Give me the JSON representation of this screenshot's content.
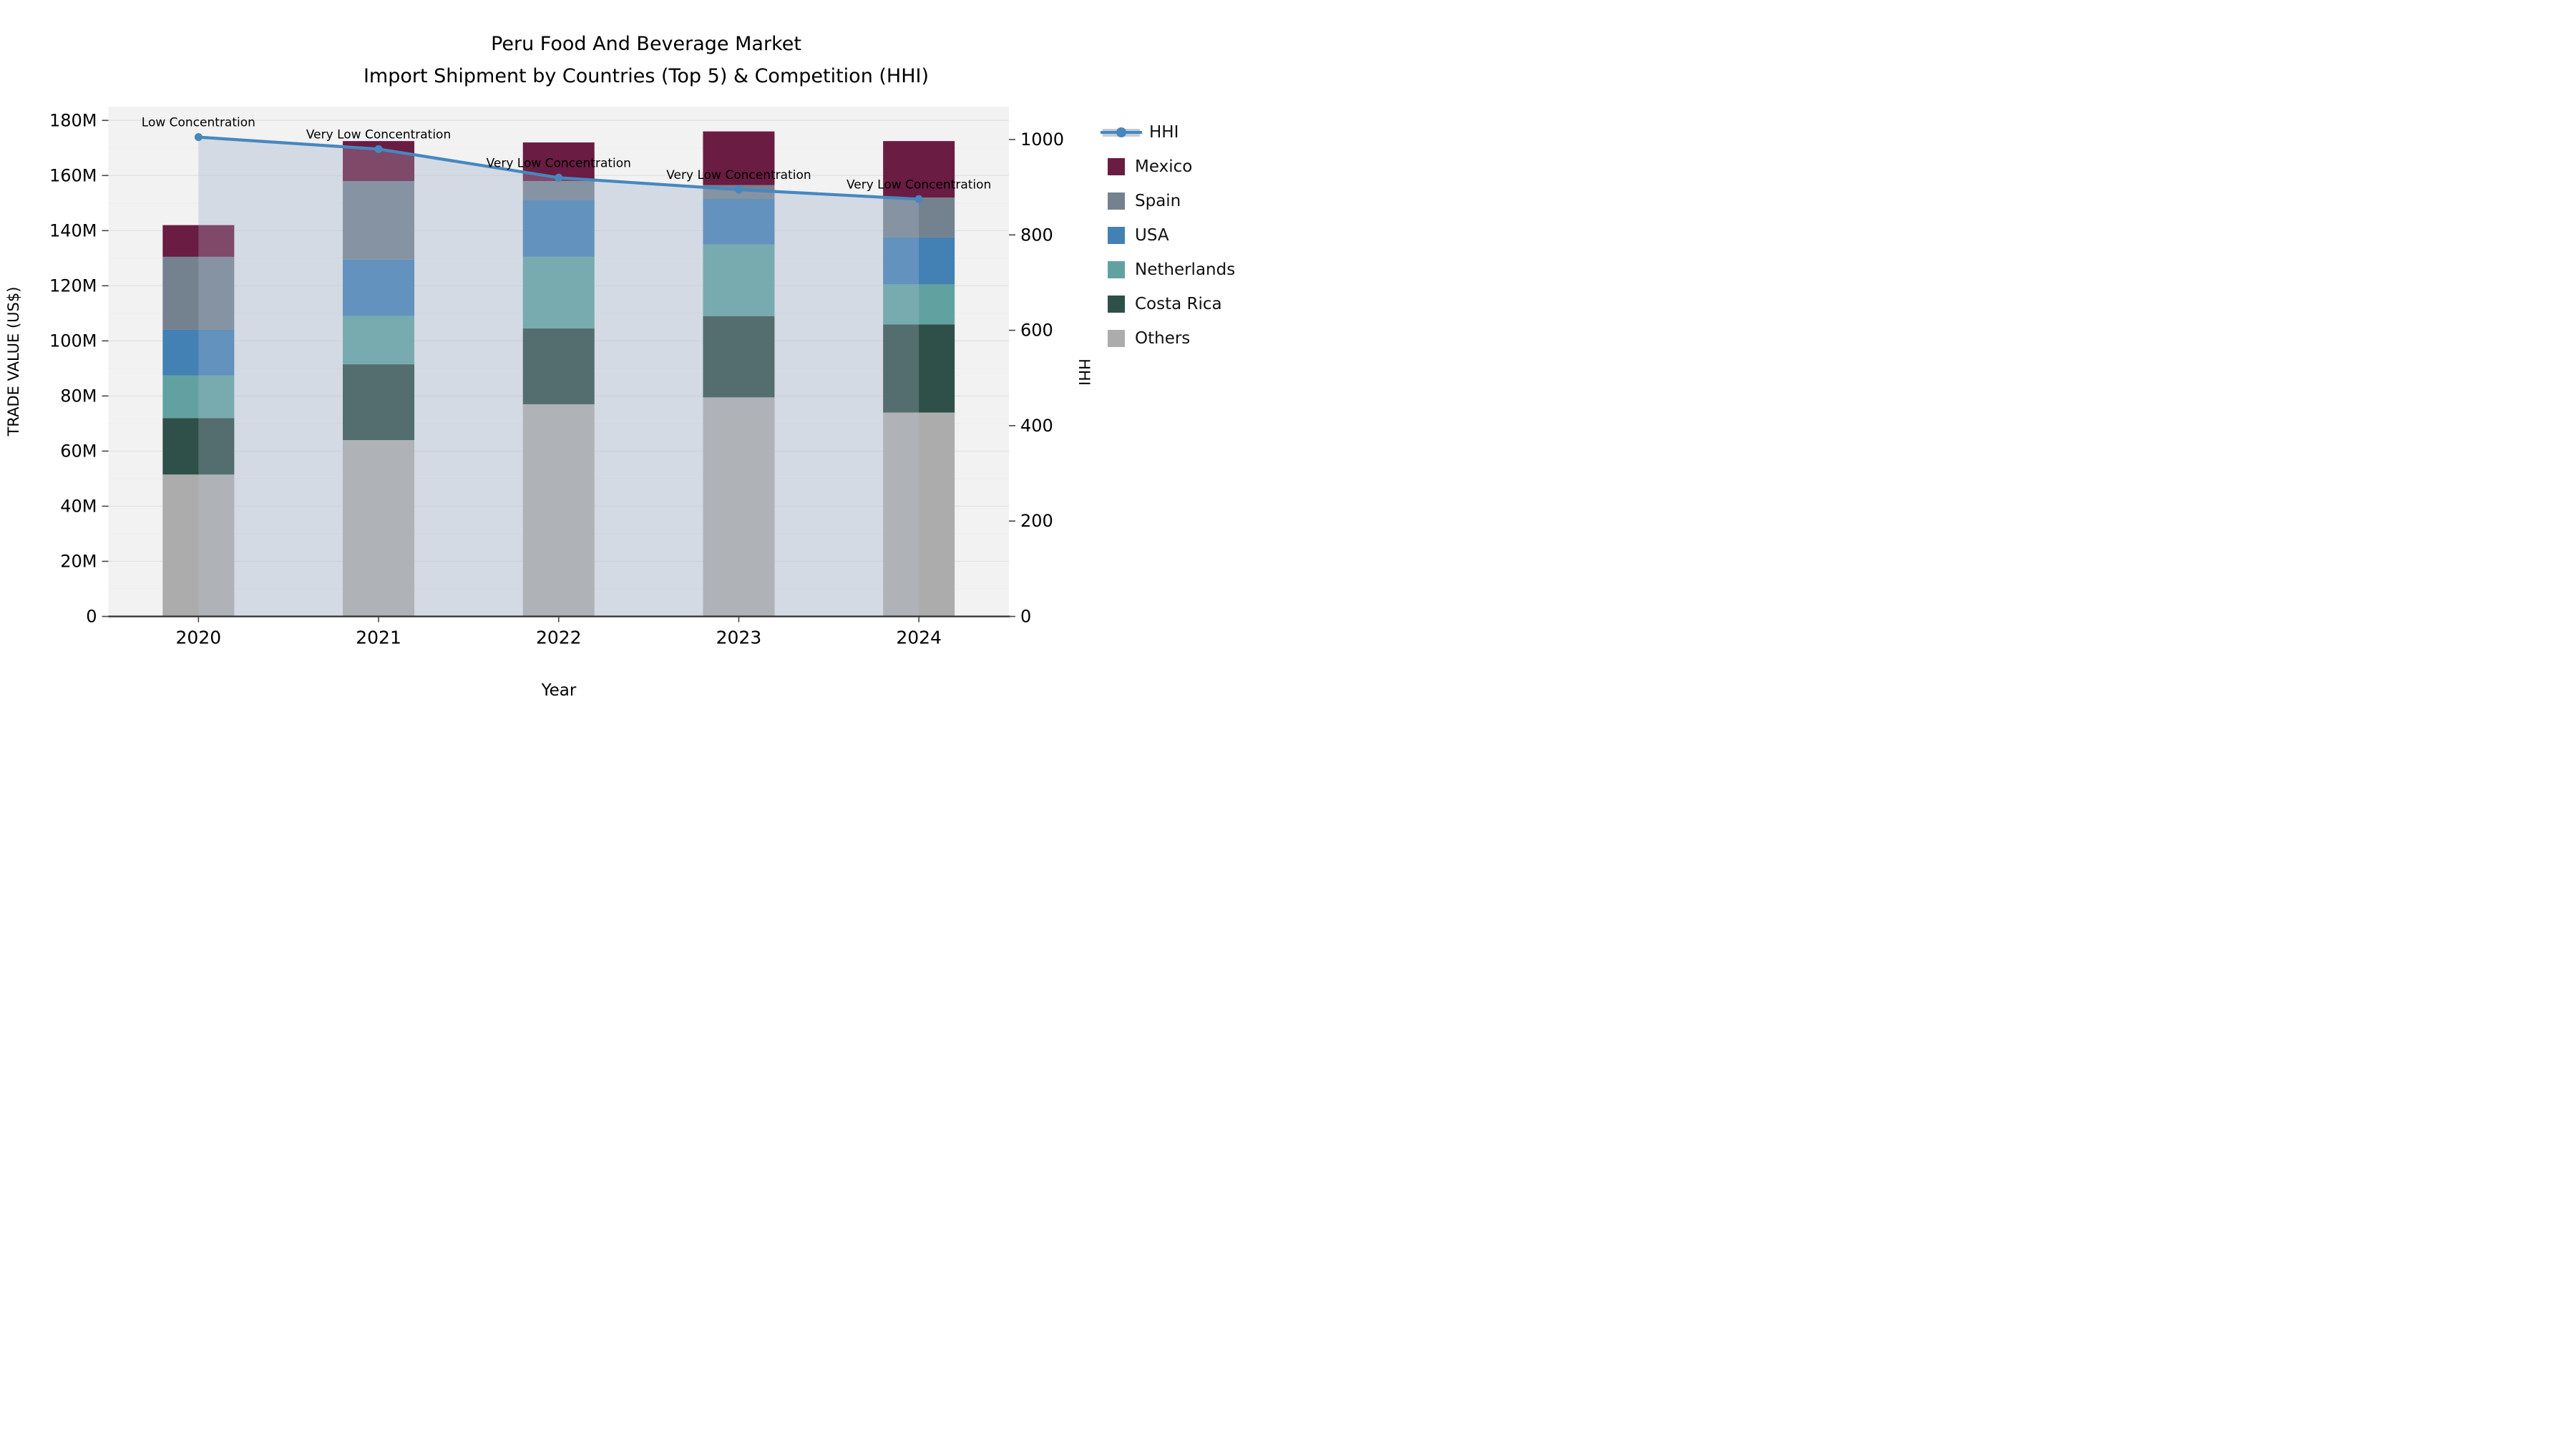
{
  "title": {
    "line1": "Peru Food And Beverage Market",
    "line2": "Import Shipment by Countries (Top 5) & Competition (HHI)"
  },
  "axes": {
    "y_left_label": "TRADE VALUE (US$)",
    "y_right_label": "HHI",
    "x_label": "Year"
  },
  "legend": {
    "entries": [
      {
        "label": "HHI",
        "kind": "line",
        "color": "#4787BF",
        "band_color": "#C3CCDB"
      },
      {
        "label": "Mexico",
        "kind": "patch",
        "color": "#6A1C42"
      },
      {
        "label": "Spain",
        "kind": "patch",
        "color": "#74828F"
      },
      {
        "label": "USA",
        "kind": "patch",
        "color": "#4380B4"
      },
      {
        "label": "Netherlands",
        "kind": "patch",
        "color": "#61A2A1"
      },
      {
        "label": "Costa Rica",
        "kind": "patch",
        "color": "#2F4F49"
      },
      {
        "label": "Others",
        "kind": "patch",
        "color": "#ACACAC"
      }
    ]
  },
  "colors": {
    "plot_bg": "#F2F2F2",
    "grid_major": "#E3E3E3",
    "grid_minor": "#EDEDED",
    "spine": "#2E2E2E",
    "hhi_line": "#4787BF",
    "hhi_fill": "#B9C4D6"
  },
  "chart_data": {
    "type": "bar",
    "stacked": true,
    "title": "Peru Food And Beverage Market",
    "subtitle": "Import Shipment by Countries (Top 5) & Competition (HHI)",
    "xlabel": "Year",
    "ylabel_left": "TRADE VALUE (US$)",
    "ylabel_right": "HHI",
    "unit": "M US$ (trade value, left axis)",
    "categories": [
      "2020",
      "2021",
      "2022",
      "2023",
      "2024"
    ],
    "series": [
      {
        "name": "Others",
        "color": "#ACACAC",
        "values": [
          51.5,
          64.0,
          77.0,
          79.5,
          74.0
        ]
      },
      {
        "name": "Costa Rica",
        "color": "#2F4F49",
        "values": [
          20.5,
          27.5,
          27.5,
          29.5,
          32.0
        ]
      },
      {
        "name": "Netherlands",
        "color": "#61A2A1",
        "values": [
          15.5,
          17.5,
          26.0,
          26.0,
          14.5
        ]
      },
      {
        "name": "USA",
        "color": "#4380B4",
        "values": [
          16.5,
          20.5,
          20.5,
          16.5,
          17.0
        ]
      },
      {
        "name": "Spain",
        "color": "#74828F",
        "values": [
          26.5,
          28.5,
          7.0,
          5.0,
          14.5
        ]
      },
      {
        "name": "Mexico",
        "color": "#6A1C42",
        "values": [
          11.5,
          14.5,
          14.0,
          19.5,
          20.5
        ]
      }
    ],
    "totals": [
      142.0,
      172.5,
      172.0,
      176.0,
      172.5
    ],
    "line_series": {
      "name": "HHI",
      "axis": "right",
      "color": "#4787BF",
      "fill_color": "#B9C4D6",
      "values": [
        1005,
        980,
        920,
        895,
        875
      ]
    },
    "annotations": [
      {
        "x": "2020",
        "text": "Low Concentration"
      },
      {
        "x": "2021",
        "text": "Very Low Concentration"
      },
      {
        "x": "2022",
        "text": "Very Low Concentration"
      },
      {
        "x": "2023",
        "text": "Very Low Concentration"
      },
      {
        "x": "2024",
        "text": "Very Low Concentration"
      }
    ],
    "axis_left": {
      "min": 0,
      "max": 185,
      "tick_step": 20,
      "tick_values": [
        0,
        20,
        40,
        60,
        80,
        100,
        120,
        140,
        160,
        180
      ],
      "tick_labels": [
        "0",
        "20M",
        "40M",
        "60M",
        "80M",
        "100M",
        "120M",
        "140M",
        "160M",
        "180M"
      ]
    },
    "axis_right": {
      "min": 0,
      "max": 1069,
      "tick_step": 200,
      "tick_values": [
        0,
        200,
        400,
        600,
        800,
        1000
      ],
      "tick_labels": [
        "0",
        "200",
        "400",
        "600",
        "800",
        "1000"
      ]
    },
    "grid": {
      "major_step": 20,
      "minor_step": 10
    },
    "legend_position": "right"
  }
}
